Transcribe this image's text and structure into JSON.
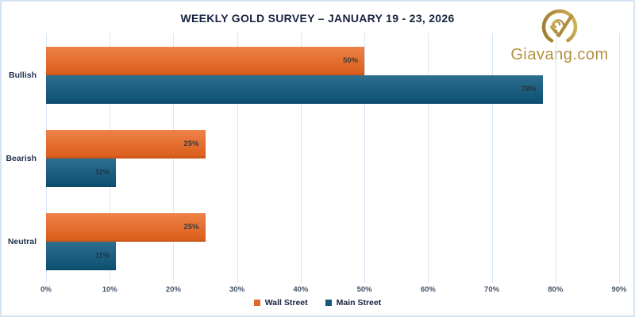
{
  "page": {
    "background": "#ffffff",
    "border_color": "#d5e3f3"
  },
  "branding": {
    "logo_text": "Giavang.com",
    "logo_color": "#b3903f",
    "logo_icon": "gold-circle-check-icon"
  },
  "chart_data": {
    "type": "bar",
    "orientation": "horizontal",
    "title": "WEEKLY GOLD SURVEY – JANUARY 19 - 23, 2026",
    "categories": [
      "Bullish",
      "Bearish",
      "Neutral"
    ],
    "series": [
      {
        "name": "Wall Street",
        "values": [
          50,
          25,
          25
        ],
        "color": "#e2662a",
        "gradient": [
          "#ef8248",
          "#d95c18"
        ],
        "label_color": "#3a3a3a"
      },
      {
        "name": "Main Street",
        "values": [
          78,
          11,
          11
        ],
        "color": "#155a7e",
        "gradient": [
          "#2e6f90",
          "#0d4f71"
        ],
        "label_color": "#23323c"
      }
    ],
    "value_suffix": "%",
    "xlim": [
      0,
      90
    ],
    "x_ticks": [
      "0%",
      "10%",
      "20%",
      "30%",
      "40%",
      "50%",
      "60%",
      "70%",
      "80%",
      "90%"
    ],
    "grid": "vertical",
    "gridline_color": "#d9e6f4",
    "axis_label_color": "#44546a",
    "category_label_color": "#203350",
    "legend_position": "bottom"
  }
}
